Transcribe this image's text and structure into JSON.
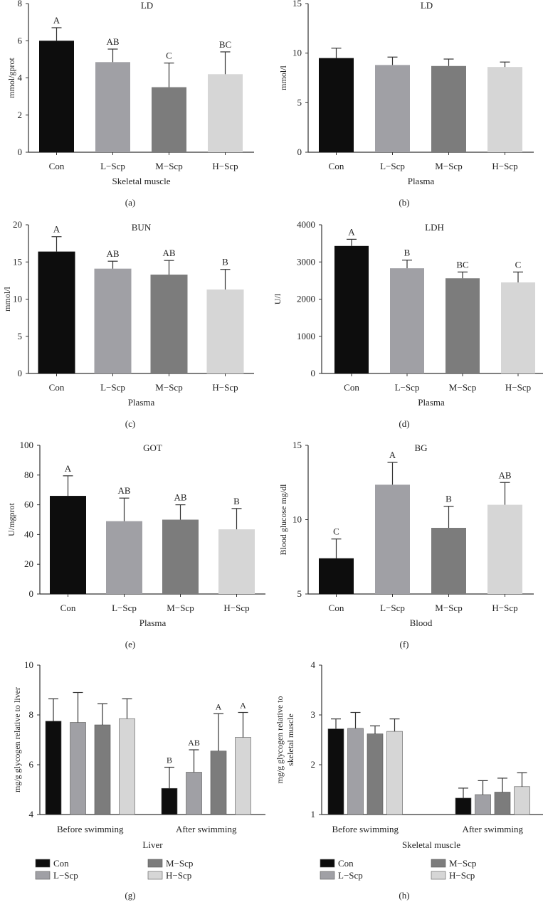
{
  "colors": {
    "Con": "#0d0d0d",
    "L-Scp": "#a0a0a5",
    "M-Scp": "#7c7c7c",
    "H-Scp": "#d6d6d6",
    "axis": "#333333"
  },
  "chart_data": [
    {
      "type": "bar",
      "panel": "(a)",
      "title": "LD",
      "xlabel": "Skeletal muscle",
      "ylabel": "mmol/gprot",
      "categories": [
        "Con",
        "L−Scp",
        "M−Scp",
        "H−Scp"
      ],
      "values": [
        6.0,
        4.85,
        3.5,
        4.2
      ],
      "errors": [
        0.7,
        0.7,
        1.3,
        1.2
      ],
      "letters": [
        "A",
        "AB",
        "C",
        "BC"
      ],
      "ylim": [
        0,
        8
      ],
      "yticks": [
        0,
        2,
        4,
        6,
        8
      ]
    },
    {
      "type": "bar",
      "panel": "(b)",
      "title": "LD",
      "xlabel": "Plasma",
      "ylabel": "mmol/l",
      "categories": [
        "Con",
        "L−Scp",
        "M−Scp",
        "H−Scp"
      ],
      "values": [
        9.5,
        8.8,
        8.7,
        8.6
      ],
      "errors": [
        1.0,
        0.8,
        0.7,
        0.5
      ],
      "letters": [
        "",
        "",
        "",
        ""
      ],
      "ylim": [
        0,
        15
      ],
      "yticks": [
        0,
        5,
        10,
        15
      ]
    },
    {
      "type": "bar",
      "panel": "(c)",
      "title": "BUN",
      "xlabel": "Plasma",
      "ylabel": "mmol/l",
      "categories": [
        "Con",
        "L−Scp",
        "M−Scp",
        "H−Scp"
      ],
      "values": [
        16.4,
        14.1,
        13.3,
        11.3
      ],
      "errors": [
        2.0,
        1.0,
        1.9,
        2.7
      ],
      "letters": [
        "A",
        "AB",
        "AB",
        "B"
      ],
      "ylim": [
        0,
        20
      ],
      "yticks": [
        0,
        5,
        10,
        15,
        20
      ]
    },
    {
      "type": "bar",
      "panel": "(d)",
      "title": "LDH",
      "xlabel": "Plasma",
      "ylabel": "U/l",
      "categories": [
        "Con",
        "L−Scp",
        "M−Scp",
        "H−Scp"
      ],
      "values": [
        3430,
        2830,
        2560,
        2450
      ],
      "errors": [
        180,
        220,
        170,
        280
      ],
      "letters": [
        "A",
        "B",
        "BC",
        "C"
      ],
      "ylim": [
        0,
        4000
      ],
      "yticks": [
        0,
        1000,
        2000,
        3000,
        4000
      ]
    },
    {
      "type": "bar",
      "panel": "(e)",
      "title": "GOT",
      "xlabel": "Plasma",
      "ylabel": "U/mgprot",
      "categories": [
        "Con",
        "L−Scp",
        "M−Scp",
        "H−Scp"
      ],
      "values": [
        66,
        49,
        50,
        43.5
      ],
      "errors": [
        13.5,
        15.5,
        10,
        14
      ],
      "letters": [
        "A",
        "AB",
        "AB",
        "B"
      ],
      "ylim": [
        0,
        100
      ],
      "yticks": [
        0,
        20,
        40,
        60,
        80,
        100
      ]
    },
    {
      "type": "bar",
      "panel": "(f)",
      "title": "BG",
      "xlabel": "Blood",
      "ylabel": "Blood glucose mg/dl",
      "categories": [
        "Con",
        "L−Scp",
        "M−Scp",
        "H−Scp"
      ],
      "values": [
        7.4,
        12.35,
        9.45,
        11.0
      ],
      "errors": [
        1.3,
        1.5,
        1.45,
        1.5
      ],
      "letters": [
        "C",
        "A",
        "B",
        "AB"
      ],
      "ylim": [
        5,
        15
      ],
      "yticks": [
        5,
        10,
        15
      ]
    },
    {
      "type": "grouped-bar",
      "panel": "(g)",
      "title": "",
      "xlabel": "Liver",
      "ylabel": "mg/g glycogen relative to liver",
      "categories": [
        "Before swimming",
        "After swimming"
      ],
      "series": [
        {
          "name": "Con",
          "values": [
            7.75,
            5.05
          ],
          "errors": [
            0.9,
            0.85
          ],
          "letters": [
            "",
            "B"
          ]
        },
        {
          "name": "L−Scp",
          "values": [
            7.7,
            5.7
          ],
          "errors": [
            1.2,
            0.9
          ],
          "letters": [
            "",
            "AB"
          ]
        },
        {
          "name": "M−Scp",
          "values": [
            7.6,
            6.55
          ],
          "errors": [
            0.85,
            1.5
          ],
          "letters": [
            "",
            "A"
          ]
        },
        {
          "name": "H−Scp",
          "values": [
            7.85,
            7.1
          ],
          "errors": [
            0.8,
            1.0
          ],
          "letters": [
            "",
            "A"
          ]
        }
      ],
      "ylim": [
        4,
        10
      ],
      "yticks": [
        4,
        6,
        8,
        10
      ],
      "legend": "bottom"
    },
    {
      "type": "grouped-bar",
      "panel": "(h)",
      "title": "",
      "xlabel": "Skeletal muscle",
      "ylabel": "mg/g glycogen relative to skeletal muscle",
      "ylabel_lines": [
        "mg/g glycogen relative to",
        "skeletal muscle"
      ],
      "categories": [
        "Before swimming",
        "After swimming"
      ],
      "series": [
        {
          "name": "Con",
          "values": [
            2.72,
            1.33
          ],
          "errors": [
            0.2,
            0.2
          ],
          "letters": [
            "",
            ""
          ]
        },
        {
          "name": "L−Scp",
          "values": [
            2.73,
            1.4
          ],
          "errors": [
            0.32,
            0.28
          ],
          "letters": [
            "",
            ""
          ]
        },
        {
          "name": "M−Scp",
          "values": [
            2.62,
            1.45
          ],
          "errors": [
            0.16,
            0.28
          ],
          "letters": [
            "",
            ""
          ]
        },
        {
          "name": "H−Scp",
          "values": [
            2.67,
            1.56
          ],
          "errors": [
            0.25,
            0.28
          ],
          "letters": [
            "",
            ""
          ]
        }
      ],
      "ylim": [
        1,
        4
      ],
      "yticks": [
        1,
        2,
        3,
        4
      ],
      "legend": "bottom"
    }
  ]
}
